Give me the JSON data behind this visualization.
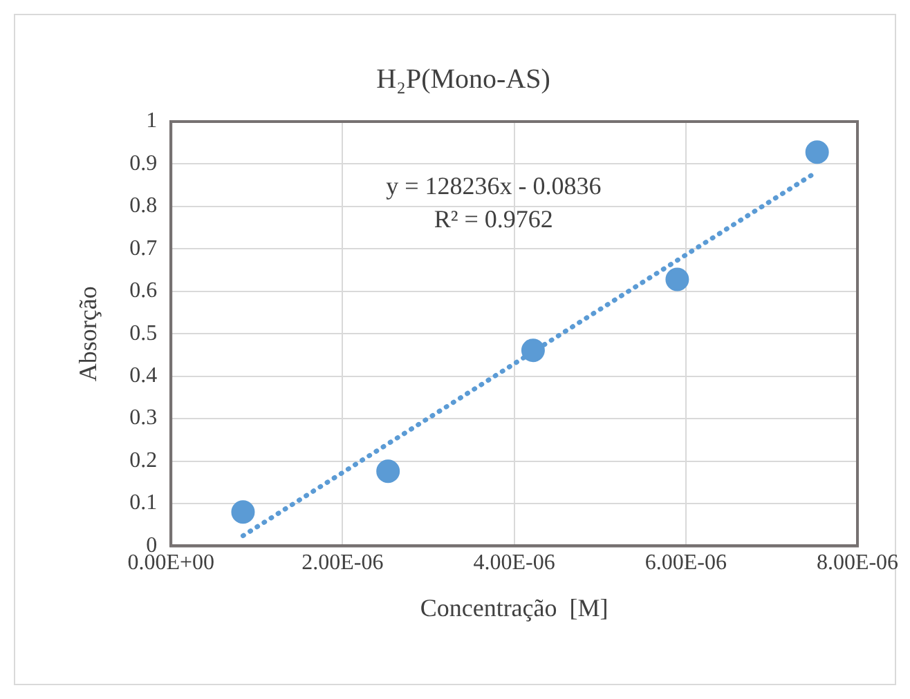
{
  "chart_data": {
    "type": "scatter",
    "title": "H₂P(Mono-AS)",
    "xlabel": "Concentração  [M]",
    "ylabel": "Absorção",
    "series": [
      {
        "type": "scatter",
        "color": "#5b9bd5",
        "marker": "circle",
        "x": [
          8.4e-07,
          2.53e-06,
          4.22e-06,
          5.9e-06,
          7.53e-06
        ],
        "values": [
          0.08,
          0.176,
          0.461,
          0.628,
          0.928
        ]
      },
      {
        "type": "line",
        "color": "#5b9bd5",
        "marker": "none",
        "line_style": "dotted",
        "x": [
          8.4e-07,
          7.53e-06
        ],
        "values": [
          0.024,
          0.882
        ]
      }
    ],
    "xlim": [
      0,
      8e-06
    ],
    "xticks": [
      {
        "value": 0,
        "label": "0.00E+00"
      },
      {
        "value": 2e-06,
        "label": "2.00E-06"
      },
      {
        "value": 4e-06,
        "label": "4.00E-06"
      },
      {
        "value": 6e-06,
        "label": "6.00E-06"
      },
      {
        "value": 8e-06,
        "label": "8.00E-06"
      }
    ],
    "ylim": [
      0,
      1
    ],
    "yticks": [
      0,
      0.1,
      0.2,
      0.3,
      0.4,
      0.5,
      0.6,
      0.7,
      0.8,
      0.9,
      1
    ],
    "annotations": [
      "y = 128236x - 0.0836",
      "R² = 0.9762"
    ],
    "grid": true,
    "legend": false
  }
}
